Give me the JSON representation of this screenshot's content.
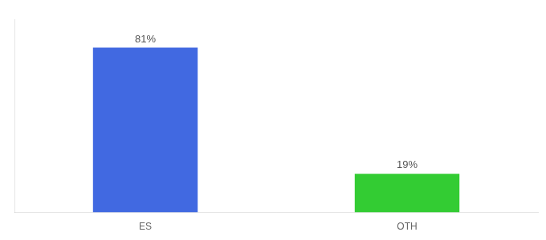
{
  "chart_data": {
    "type": "bar",
    "categories": [
      "ES",
      "OTH"
    ],
    "values": [
      81,
      19
    ],
    "value_labels": [
      "81%",
      "19%"
    ],
    "colors": [
      "#4169e1",
      "#33cc33"
    ],
    "ylim": [
      0,
      95
    ],
    "grid": false,
    "data_labels": true,
    "tick_labels": "x"
  }
}
